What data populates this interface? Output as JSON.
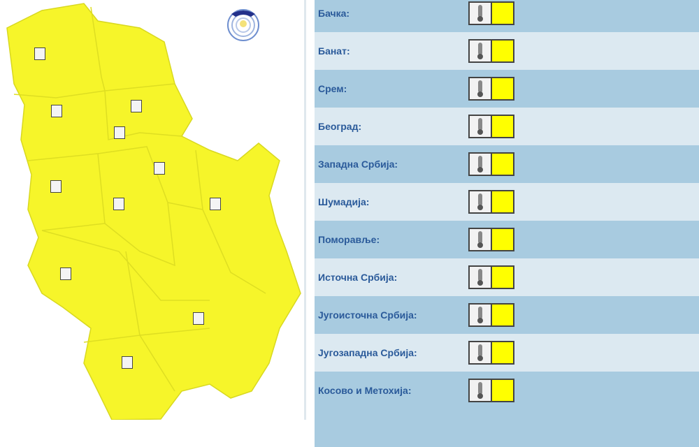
{
  "warning_color": "#ffff00",
  "map_color": "#f6f52a",
  "logo": {
    "icon": "meteorological-service-logo"
  },
  "regions": [
    {
      "label": "Бачка:",
      "icon": "thermometer-icon",
      "level_color": "#ffff00"
    },
    {
      "label": "Банат:",
      "icon": "thermometer-icon",
      "level_color": "#ffff00"
    },
    {
      "label": "Срем:",
      "icon": "thermometer-icon",
      "level_color": "#ffff00"
    },
    {
      "label": "Београд:",
      "icon": "thermometer-icon",
      "level_color": "#ffff00"
    },
    {
      "label": "Западна Србија:",
      "icon": "thermometer-icon",
      "level_color": "#ffff00"
    },
    {
      "label": "Шумадија:",
      "icon": "thermometer-icon",
      "level_color": "#ffff00"
    },
    {
      "label": "Поморавље:",
      "icon": "thermometer-icon",
      "level_color": "#ffff00"
    },
    {
      "label": "Источна Србија:",
      "icon": "thermometer-icon",
      "level_color": "#ffff00"
    },
    {
      "label": "Југоисточна Србија:",
      "icon": "thermometer-icon",
      "level_color": "#ffff00"
    },
    {
      "label": "Југозападна Србија:",
      "icon": "thermometer-icon",
      "level_color": "#ffff00"
    },
    {
      "label": "Косово и Метохија:",
      "icon": "thermometer-icon",
      "level_color": "#ffff00"
    }
  ]
}
